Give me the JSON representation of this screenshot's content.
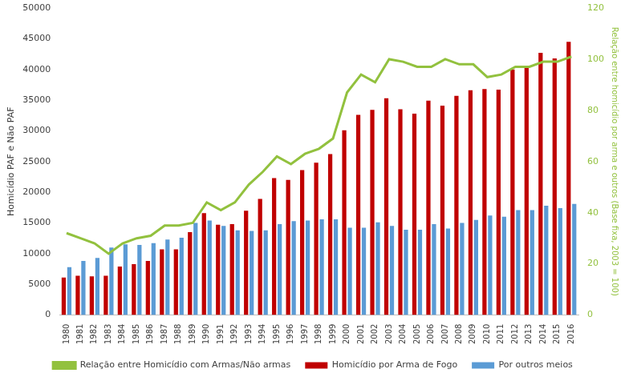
{
  "chart_data": {
    "type": "bar",
    "y_label": "Homicídio PAF e Não PAF",
    "y2_label": "Relação entre homicídio por arma e outros (Base fixa, 2003 = 100)",
    "categories": [
      "1980",
      "1981",
      "1982",
      "1983",
      "1984",
      "1985",
      "1986",
      "1987",
      "1988",
      "1989",
      "1990",
      "1991",
      "1992",
      "1993",
      "1994",
      "1995",
      "1996",
      "1997",
      "1998",
      "1999",
      "2000",
      "2001",
      "2002",
      "2003",
      "2004",
      "2005",
      "2006",
      "2007",
      "2008",
      "2009",
      "2010",
      "2011",
      "2012",
      "2013",
      "2014",
      "2015",
      "2016"
    ],
    "series": [
      {
        "name": "Homicídio por Arma de Fogo",
        "color": "#c00000",
        "type": "bar",
        "values": [
          6100,
          6400,
          6300,
          6400,
          7900,
          8300,
          8800,
          10700,
          10700,
          13500,
          16600,
          14700,
          14800,
          17000,
          18900,
          22300,
          22000,
          23600,
          24800,
          26200,
          30100,
          32600,
          33400,
          35300,
          33500,
          32800,
          34900,
          34100,
          35700,
          36600,
          36800,
          36700,
          40000,
          40400,
          42700,
          41800,
          44500
        ]
      },
      {
        "name": "Por outros meios",
        "color": "#5b9bd5",
        "type": "bar",
        "values": [
          7800,
          8800,
          9300,
          11000,
          11500,
          11400,
          11700,
          12300,
          12600,
          15000,
          15400,
          14500,
          13800,
          13700,
          13800,
          14800,
          15300,
          15400,
          15600,
          15600,
          14200,
          14200,
          15100,
          14500,
          13900,
          13900,
          14800,
          14100,
          15000,
          15500,
          16200,
          16000,
          17100,
          17100,
          17800,
          17400,
          18100
        ]
      },
      {
        "name": "Relação entre Homicídio com Armas/Não armas",
        "color": "#92c13e",
        "type": "line",
        "axis": "y2",
        "values": [
          32,
          30,
          28,
          24,
          28,
          30,
          31,
          35,
          35,
          36,
          44,
          41,
          44,
          51,
          56,
          62,
          59,
          63,
          65,
          69,
          87,
          94,
          91,
          100,
          99,
          97,
          97,
          100,
          98,
          98,
          93,
          94,
          97,
          97,
          99,
          99,
          101
        ]
      }
    ],
    "ylim": [
      0,
      50000
    ],
    "yticks": [
      0,
      5000,
      10000,
      15000,
      20000,
      25000,
      30000,
      35000,
      40000,
      45000,
      50000
    ],
    "y2lim": [
      0,
      120
    ],
    "y2ticks": [
      0,
      20,
      40,
      60,
      80,
      100,
      120
    ],
    "grid": false,
    "legend": "bottom"
  }
}
